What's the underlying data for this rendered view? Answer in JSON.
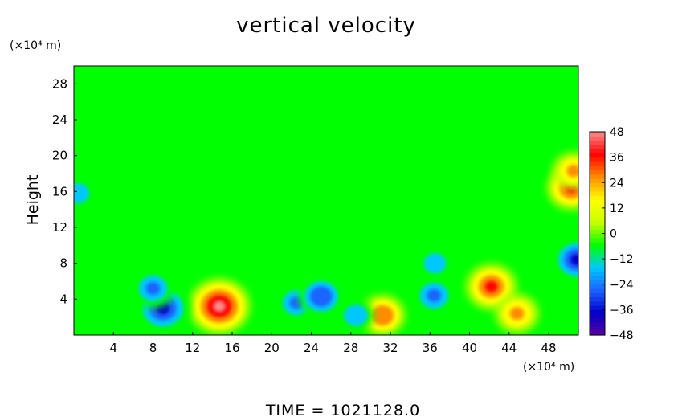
{
  "chart_data": {
    "type": "heatmap",
    "title": "vertical velocity",
    "ylabel": "Height",
    "xunit": "(×10⁴ m)",
    "yunit": "(×10⁴ m)",
    "xlim": [
      0,
      51
    ],
    "ylim": [
      0,
      30
    ],
    "xticks": [
      4,
      8,
      12,
      16,
      20,
      24,
      28,
      32,
      36,
      40,
      44,
      48
    ],
    "yticks": [
      4,
      8,
      12,
      16,
      20,
      24,
      28
    ],
    "colorbar": {
      "min": -48,
      "max": 48,
      "ticks": [
        48,
        36,
        24,
        12,
        0,
        -12,
        -24,
        -36,
        -48
      ],
      "tick_labels": [
        "48",
        "36",
        "24",
        "12",
        "0",
        "−12",
        "−24",
        "−36",
        "−48"
      ],
      "colors": [
        "#5a00a0",
        "#0000c8",
        "#1e64ff",
        "#00c8ff",
        "#00ff00",
        "#c8ff00",
        "#ffff00",
        "#ff8c00",
        "#ff0000",
        "#ff8a8a"
      ]
    },
    "background_value": 0,
    "features": [
      {
        "kind": "updraft",
        "x": 14.7,
        "y": 3.2,
        "value": 48
      },
      {
        "kind": "updraft",
        "x": 42.2,
        "y": 5.4,
        "value": 36
      },
      {
        "kind": "updraft",
        "x": 44.8,
        "y": 2.4,
        "value": 28
      },
      {
        "kind": "updraft",
        "x": 31.2,
        "y": 2.2,
        "value": 30
      },
      {
        "kind": "updraft",
        "x": 50.3,
        "y": 16.4,
        "value": 34
      },
      {
        "kind": "updraft",
        "x": 50.5,
        "y": 18.3,
        "value": 26
      },
      {
        "kind": "downdraft",
        "x": 9.0,
        "y": 3.0,
        "value": -40
      },
      {
        "kind": "downdraft",
        "x": 8.0,
        "y": 5.2,
        "value": -28
      },
      {
        "kind": "downdraft",
        "x": 22.5,
        "y": 3.6,
        "value": -26
      },
      {
        "kind": "downdraft",
        "x": 25.0,
        "y": 4.3,
        "value": -30
      },
      {
        "kind": "downdraft",
        "x": 36.4,
        "y": 4.4,
        "value": -28
      },
      {
        "kind": "downdraft",
        "x": 36.5,
        "y": 8.0,
        "value": -18
      },
      {
        "kind": "downdraft",
        "x": 50.8,
        "y": 8.4,
        "value": -34
      },
      {
        "kind": "downdraft",
        "x": 0.4,
        "y": 15.8,
        "value": -18
      },
      {
        "kind": "downdraft",
        "x": 28.5,
        "y": 2.2,
        "value": -20
      }
    ]
  },
  "footer": {
    "time_label": "TIME  =  1021128.0"
  }
}
